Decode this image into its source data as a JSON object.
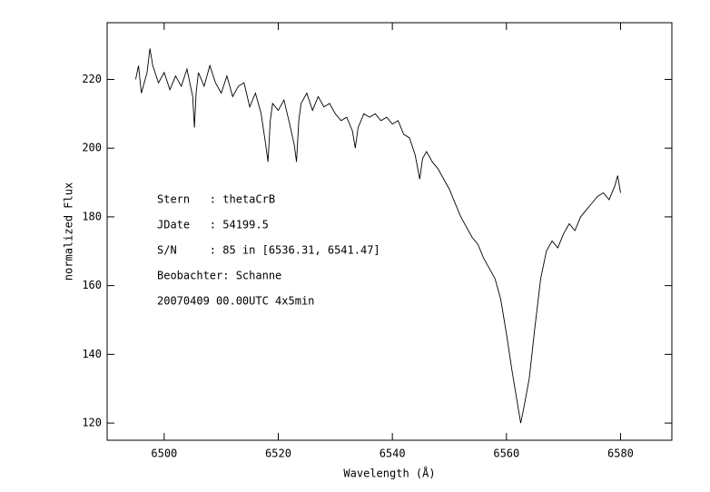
{
  "chart_data": {
    "type": "line",
    "xlabel": "Wavelength (Å)",
    "ylabel": "normalized Flux",
    "annotations": [
      "Stern   : thetaCrB",
      "JDate   : 54199.5",
      "S/N     : 85 in [6536.31, 6541.47]",
      "Beobachter: Schanne",
      "20070409 00.00UTC 4x5min"
    ],
    "xlim": [
      6490,
      6589
    ],
    "ylim": [
      115,
      236.5
    ],
    "xticks": [
      6500,
      6520,
      6540,
      6560,
      6580
    ],
    "yticks": [
      120,
      140,
      160,
      180,
      200,
      220
    ],
    "series": [
      {
        "color": "#000000",
        "x": [
          6495,
          6495.5,
          6496,
          6497,
          6497.5,
          6498,
          6499,
          6500,
          6501,
          6502,
          6503,
          6504,
          6505,
          6505.3,
          6505.6,
          6506,
          6507,
          6508,
          6509,
          6510,
          6511,
          6512,
          6513,
          6514,
          6515,
          6516,
          6517,
          6517.8,
          6518.2,
          6518.6,
          6519,
          6520,
          6521,
          6522,
          6522.8,
          6523.2,
          6523.6,
          6524,
          6525,
          6526,
          6527,
          6528,
          6529,
          6530,
          6531,
          6532,
          6533,
          6533.5,
          6534,
          6535,
          6536,
          6537,
          6538,
          6539,
          6540,
          6541,
          6542,
          6543,
          6544,
          6544.8,
          6545.3,
          6546,
          6547,
          6548,
          6549,
          6550,
          6551,
          6552,
          6553,
          6554,
          6555,
          6556,
          6557,
          6558,
          6559,
          6560,
          6561,
          6562,
          6562.5,
          6563,
          6564,
          6565,
          6566,
          6567,
          6568,
          6569,
          6570,
          6571,
          6572,
          6573,
          6574,
          6575,
          6576,
          6577,
          6578,
          6579,
          6579.5,
          6580
        ],
        "values": [
          220,
          224,
          216,
          222,
          229,
          224,
          219,
          222,
          217,
          221,
          218,
          223,
          215,
          206,
          216,
          222,
          218,
          224,
          219,
          216,
          221,
          215,
          218,
          219,
          212,
          216,
          210,
          201,
          196,
          208,
          213,
          211,
          214,
          207,
          201,
          196,
          208,
          213,
          216,
          211,
          215,
          212,
          213,
          210,
          208,
          209,
          205,
          200,
          206,
          210,
          209,
          210,
          208,
          209,
          207,
          208,
          204,
          203,
          198,
          191,
          197,
          199,
          196,
          194,
          191,
          188,
          184,
          180,
          177,
          174,
          172,
          168,
          165,
          162,
          156,
          146,
          135,
          125,
          120,
          124,
          133,
          148,
          162,
          170,
          173,
          171,
          175,
          178,
          176,
          180,
          182,
          184,
          186,
          187,
          185,
          189,
          192,
          187
        ]
      }
    ]
  }
}
